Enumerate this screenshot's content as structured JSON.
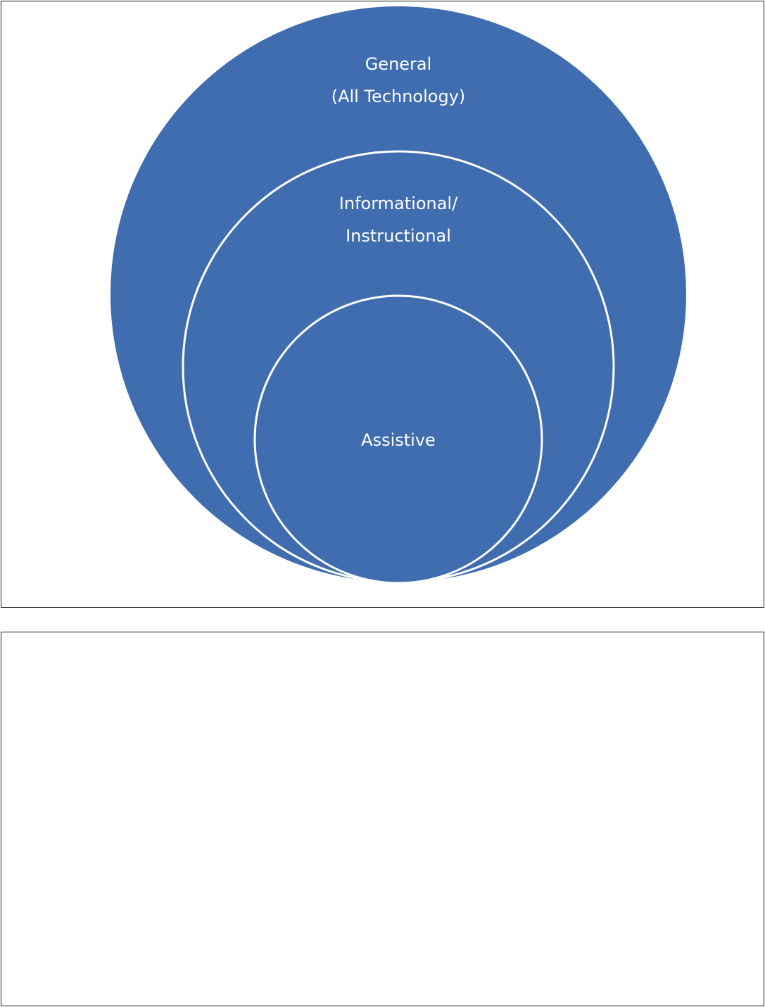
{
  "diagram": {
    "type": "nested-circles",
    "fill_color": "#3f6db0",
    "stroke_color": "#ffffff",
    "circles": [
      {
        "id": "general",
        "lines": [
          "General",
          "(All Technology)"
        ]
      },
      {
        "id": "informational",
        "lines": [
          "Informational/",
          "Instructional"
        ]
      },
      {
        "id": "assistive",
        "lines": [
          "Assistive"
        ]
      }
    ]
  }
}
